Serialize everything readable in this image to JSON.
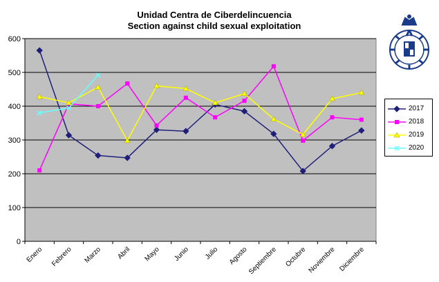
{
  "chart_data": {
    "type": "line",
    "title_line1": "Unidad Centra de Ciberdelincuencia",
    "title_line2": "Section against child sexual exploitation",
    "categories": [
      "Enero",
      "Febrero",
      "Marzo",
      "Abril",
      "Mayo",
      "Junio",
      "Julio",
      "Agosto",
      "Septiembre",
      "Octubre",
      "Noviembre",
      "Diciembre"
    ],
    "ylim": [
      0,
      600
    ],
    "yticks": [
      "0",
      "100",
      "200",
      "300",
      "400",
      "500",
      "600"
    ],
    "grid": true,
    "legend_position": "right",
    "series": [
      {
        "name": "2017",
        "color": "#1f1f7a",
        "marker": "diamond",
        "values": [
          565,
          314,
          254,
          247,
          330,
          326,
          405,
          385,
          318,
          208,
          282,
          328
        ]
      },
      {
        "name": "2018",
        "color": "#ff00ff",
        "marker": "square",
        "values": [
          210,
          407,
          400,
          467,
          343,
          425,
          367,
          416,
          518,
          298,
          367,
          360
        ]
      },
      {
        "name": "2019",
        "color": "#ffff00",
        "marker": "triangle",
        "values": [
          428,
          410,
          456,
          298,
          460,
          452,
          410,
          437,
          362,
          316,
          422,
          440
        ]
      },
      {
        "name": "2020",
        "color": "#66ffff",
        "marker": "x",
        "values": [
          380,
          395,
          492,
          null,
          null,
          null,
          null,
          null,
          null,
          null,
          null,
          null
        ]
      }
    ]
  },
  "logo": {
    "name": "police-emblem"
  }
}
